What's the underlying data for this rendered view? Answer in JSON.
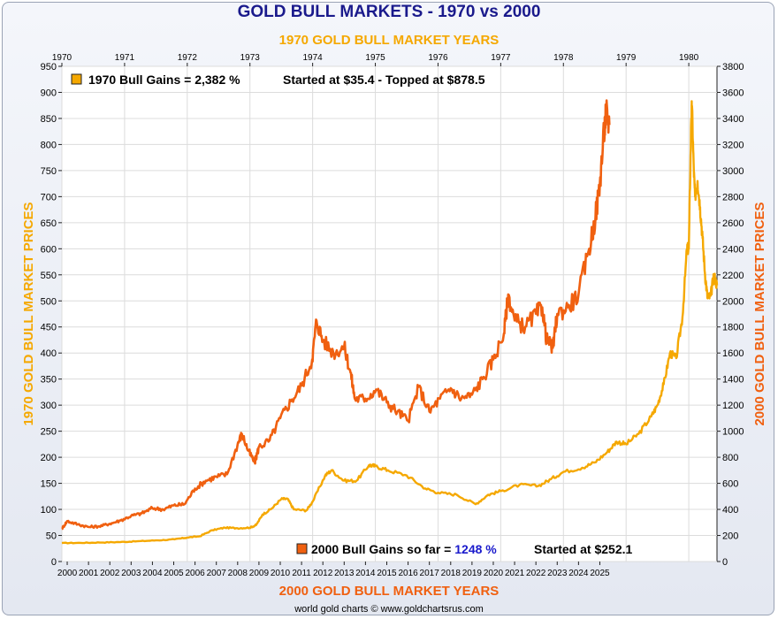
{
  "chart_data": {
    "type": "line",
    "title": "GOLD BULL MARKETS - 1970 vs 2000",
    "top_axis_title": "1970 GOLD BULL MARKET YEARS",
    "bottom_axis_title": "2000 GOLD BULL MARKET YEARS",
    "left_axis_title": "1970 GOLD BULL MARKET PRICES",
    "right_axis_title": "2000 GOLD BULL MARKET PRICES",
    "footer": "world gold charts © www.goldchartsrus.com",
    "grid": true,
    "top_axis": {
      "range": [
        1970,
        1980.45
      ],
      "ticks": [
        "1970",
        "1971",
        "1972",
        "1973",
        "1974",
        "1975",
        "1976",
        "1977",
        "1978",
        "1979",
        "1980"
      ]
    },
    "bottom_axis": {
      "range": [
        1999.75,
        2030.5
      ],
      "ticks": [
        "2000",
        "2001",
        "2002",
        "2003",
        "2004",
        "2005",
        "2006",
        "2007",
        "2008",
        "2009",
        "2010",
        "2011",
        "2012",
        "2013",
        "2014",
        "2015",
        "2016",
        "2017",
        "2018",
        "2019",
        "2020",
        "2021",
        "2022",
        "2023",
        "2024",
        "2025"
      ]
    },
    "left_axis": {
      "range": [
        0,
        950
      ],
      "ticks": [
        0,
        50,
        100,
        150,
        200,
        250,
        300,
        350,
        400,
        450,
        500,
        550,
        600,
        650,
        700,
        750,
        800,
        850,
        900,
        950
      ]
    },
    "right_axis": {
      "range": [
        0,
        3800
      ],
      "ticks": [
        0,
        200,
        400,
        600,
        800,
        1000,
        1200,
        1400,
        1600,
        1800,
        2000,
        2200,
        2400,
        2600,
        2800,
        3000,
        3200,
        3400,
        3600,
        3800
      ]
    },
    "legend": [
      {
        "color": "#f5a800",
        "text": "1970 Bull Gains = 2,382 %",
        "extra": "Started at $35.4 - Topped at $878.5"
      },
      {
        "color": "#f06010",
        "text_prefix": "2000 Bull Gains so far = ",
        "highlight": "1248 %",
        "extra": "Started at $252.1"
      }
    ],
    "series": [
      {
        "name": "1970 Bull Gains",
        "color": "#f5a800",
        "axis": "top-left",
        "points": [
          [
            1970.0,
            35.4
          ],
          [
            1970.3,
            35.8
          ],
          [
            1970.6,
            36.5
          ],
          [
            1970.9,
            37.3
          ],
          [
            1971.2,
            38.8
          ],
          [
            1971.5,
            40.5
          ],
          [
            1971.8,
            42.5
          ],
          [
            1972.0,
            46
          ],
          [
            1972.2,
            48.5
          ],
          [
            1972.4,
            60
          ],
          [
            1972.6,
            65
          ],
          [
            1972.8,
            64
          ],
          [
            1973.0,
            65
          ],
          [
            1973.1,
            70
          ],
          [
            1973.2,
            90
          ],
          [
            1973.35,
            102
          ],
          [
            1973.5,
            120
          ],
          [
            1973.6,
            120
          ],
          [
            1973.7,
            100
          ],
          [
            1973.9,
            98
          ],
          [
            1974.0,
            115
          ],
          [
            1974.2,
            165
          ],
          [
            1974.3,
            175
          ],
          [
            1974.5,
            155
          ],
          [
            1974.7,
            155
          ],
          [
            1974.9,
            185
          ],
          [
            1975.0,
            183
          ],
          [
            1975.2,
            175
          ],
          [
            1975.5,
            165
          ],
          [
            1975.8,
            140
          ],
          [
            1976.0,
            132
          ],
          [
            1976.3,
            128
          ],
          [
            1976.6,
            110
          ],
          [
            1976.8,
            128
          ],
          [
            1977.0,
            135
          ],
          [
            1977.3,
            147
          ],
          [
            1977.6,
            145
          ],
          [
            1977.8,
            158
          ],
          [
            1978.0,
            172
          ],
          [
            1978.3,
            180
          ],
          [
            1978.5,
            190
          ],
          [
            1978.7,
            210
          ],
          [
            1978.85,
            230
          ],
          [
            1979.0,
            225
          ],
          [
            1979.2,
            245
          ],
          [
            1979.4,
            278
          ],
          [
            1979.5,
            300
          ],
          [
            1979.6,
            340
          ],
          [
            1979.7,
            400
          ],
          [
            1979.8,
            390
          ],
          [
            1979.9,
            470
          ],
          [
            1979.97,
            600
          ],
          [
            1980.0,
            600
          ],
          [
            1980.04,
            850
          ],
          [
            1980.05,
            875
          ],
          [
            1980.08,
            750
          ],
          [
            1980.1,
            700
          ],
          [
            1980.14,
            730
          ],
          [
            1980.18,
            680
          ],
          [
            1980.22,
            620
          ],
          [
            1980.26,
            550
          ],
          [
            1980.3,
            505
          ],
          [
            1980.35,
            510
          ],
          [
            1980.4,
            550
          ],
          [
            1980.45,
            530
          ]
        ]
      },
      {
        "name": "2000 Bull Gains so far",
        "color": "#f06010",
        "axis": "bottom-right",
        "points": [
          [
            1999.75,
            252
          ],
          [
            2000.0,
            310
          ],
          [
            2000.5,
            285
          ],
          [
            2001.0,
            265
          ],
          [
            2001.5,
            270
          ],
          [
            2002.0,
            290
          ],
          [
            2002.5,
            315
          ],
          [
            2003.0,
            350
          ],
          [
            2003.5,
            370
          ],
          [
            2004.0,
            410
          ],
          [
            2004.5,
            400
          ],
          [
            2005.0,
            430
          ],
          [
            2005.5,
            440
          ],
          [
            2006.0,
            560
          ],
          [
            2006.5,
            620
          ],
          [
            2007.0,
            650
          ],
          [
            2007.5,
            670
          ],
          [
            2008.0,
            900
          ],
          [
            2008.2,
            980
          ],
          [
            2008.5,
            850
          ],
          [
            2008.8,
            760
          ],
          [
            2009.0,
            880
          ],
          [
            2009.5,
            930
          ],
          [
            2010.0,
            1100
          ],
          [
            2010.5,
            1230
          ],
          [
            2011.0,
            1350
          ],
          [
            2011.5,
            1550
          ],
          [
            2011.7,
            1850
          ],
          [
            2012.0,
            1700
          ],
          [
            2012.5,
            1600
          ],
          [
            2013.0,
            1650
          ],
          [
            2013.3,
            1450
          ],
          [
            2013.5,
            1250
          ],
          [
            2014.0,
            1250
          ],
          [
            2014.5,
            1320
          ],
          [
            2015.0,
            1220
          ],
          [
            2015.5,
            1150
          ],
          [
            2016.0,
            1080
          ],
          [
            2016.5,
            1340
          ],
          [
            2017.0,
            1150
          ],
          [
            2017.5,
            1250
          ],
          [
            2018.0,
            1330
          ],
          [
            2018.5,
            1250
          ],
          [
            2019.0,
            1280
          ],
          [
            2019.5,
            1400
          ],
          [
            2020.0,
            1550
          ],
          [
            2020.5,
            1750
          ],
          [
            2020.7,
            2050
          ],
          [
            2021.0,
            1850
          ],
          [
            2021.5,
            1800
          ],
          [
            2022.0,
            1900
          ],
          [
            2022.3,
            1950
          ],
          [
            2022.5,
            1700
          ],
          [
            2022.8,
            1640
          ],
          [
            2023.0,
            1900
          ],
          [
            2023.5,
            1950
          ],
          [
            2024.0,
            2050
          ],
          [
            2024.5,
            2400
          ],
          [
            2024.8,
            2650
          ],
          [
            2025.0,
            2900
          ],
          [
            2025.2,
            3300
          ],
          [
            2025.3,
            3450
          ],
          [
            2025.45,
            3350
          ]
        ]
      }
    ]
  }
}
